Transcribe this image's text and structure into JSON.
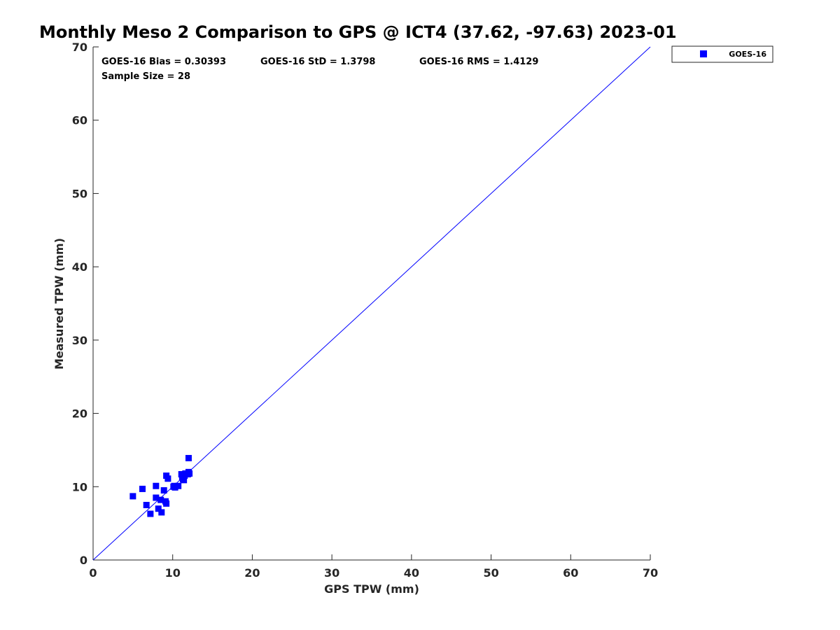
{
  "chart_data": {
    "type": "scatter",
    "title": "Monthly Meso 2 Comparison to GPS @ ICT4 (37.62, -97.63) 2023-01",
    "xlabel": "GPS TPW (mm)",
    "ylabel": "Measured TPW (mm)",
    "xlim": [
      0,
      70
    ],
    "ylim": [
      0,
      70
    ],
    "xticks": [
      0,
      10,
      20,
      30,
      40,
      50,
      60,
      70
    ],
    "yticks": [
      0,
      10,
      20,
      30,
      40,
      50,
      60,
      70
    ],
    "grid": false,
    "legend_position": "outside-top-right",
    "reference_line": {
      "x": [
        0,
        70
      ],
      "y": [
        0,
        70
      ],
      "color": "#0000ff"
    },
    "stats": {
      "bias": "GOES-16 Bias = 0.30393",
      "std": "GOES-16 StD = 1.3798",
      "rms": "GOES-16 RMS = 1.4129",
      "sample_size": "Sample Size = 28"
    },
    "series": [
      {
        "name": "GOES-16",
        "color": "#0000ff",
        "marker": "square",
        "points": [
          [
            5.0,
            8.7
          ],
          [
            6.2,
            9.7
          ],
          [
            6.7,
            7.5
          ],
          [
            7.2,
            6.3
          ],
          [
            7.9,
            10.1
          ],
          [
            7.9,
            8.5
          ],
          [
            8.2,
            7.0
          ],
          [
            8.5,
            8.2
          ],
          [
            8.6,
            6.5
          ],
          [
            8.9,
            9.5
          ],
          [
            9.1,
            8.0
          ],
          [
            9.2,
            7.7
          ],
          [
            9.2,
            11.5
          ],
          [
            9.4,
            11.1
          ],
          [
            10.1,
            10.0
          ],
          [
            10.3,
            9.9
          ],
          [
            10.7,
            10.1
          ],
          [
            11.1,
            11.7
          ],
          [
            11.3,
            11.0
          ],
          [
            11.4,
            10.9
          ],
          [
            11.5,
            11.5
          ],
          [
            11.6,
            11.8
          ],
          [
            11.9,
            11.7
          ],
          [
            12.0,
            12.0
          ],
          [
            12.1,
            11.8
          ],
          [
            12.0,
            13.9
          ],
          [
            11.2,
            11.3
          ],
          [
            10.2,
            10.1
          ]
        ]
      }
    ]
  }
}
